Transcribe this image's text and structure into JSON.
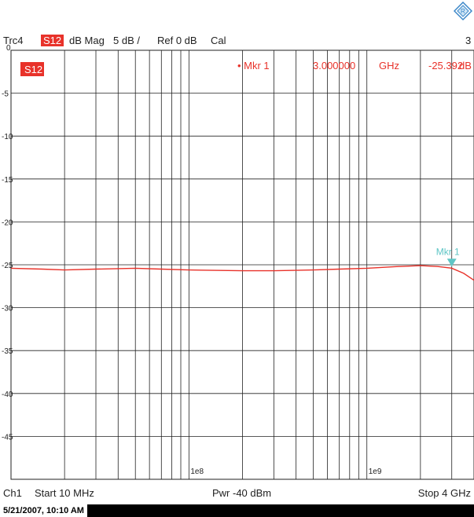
{
  "header": {
    "trace": "Trc4",
    "param_badge": "S12",
    "format": "dB Mag",
    "scale": "5 dB /",
    "ref": "Ref 0 dB",
    "cal": "Cal",
    "channel_num": "3"
  },
  "marker_readout": {
    "label": "• Mkr 1",
    "freq": "3.000000",
    "freq_unit": "GHz",
    "value": "-25.392",
    "value_unit": "dB"
  },
  "trace_label": "S12",
  "marker_label": "Mkr 1",
  "footer": {
    "channel": "Ch1",
    "start": "Start  10 MHz",
    "power": "Pwr  -40 dBm",
    "stop": "Stop  4 GHz"
  },
  "timestamp": "5/21/2007, 10:10 AM",
  "colors": {
    "trace": "#e8322a",
    "marker": "#5fc6c6",
    "grid": "#222222",
    "text": "#222222"
  },
  "chart_data": {
    "type": "line",
    "title": "",
    "xscale": "log",
    "xlabel": "",
    "ylabel": "",
    "x_unit": "Hz",
    "y_unit": "dB",
    "xlim": [
      10000000,
      4000000000
    ],
    "ylim": [
      -50,
      0
    ],
    "y_ticks": [
      0,
      -5,
      -10,
      -15,
      -20,
      -25,
      -30,
      -35,
      -40,
      -45
    ],
    "x_tick_labels": [
      {
        "value": 100000000,
        "label": "1e8"
      },
      {
        "value": 1000000000,
        "label": "1e9"
      }
    ],
    "grid": true,
    "series": [
      {
        "name": "S12",
        "x": [
          10000000,
          15000000,
          20000000,
          30000000,
          50000000,
          70000000,
          100000000,
          200000000,
          300000000,
          500000000,
          700000000,
          1000000000,
          1500000000,
          2000000000,
          2500000000,
          3000000000,
          3500000000,
          4000000000
        ],
        "y": [
          -25.4,
          -25.5,
          -25.6,
          -25.5,
          -25.4,
          -25.5,
          -25.6,
          -25.7,
          -25.7,
          -25.6,
          -25.5,
          -25.4,
          -25.2,
          -25.1,
          -25.2,
          -25.392,
          -26.0,
          -26.8
        ]
      }
    ],
    "markers": [
      {
        "name": "Mkr 1",
        "x": 3000000000,
        "y": -25.392
      }
    ]
  }
}
